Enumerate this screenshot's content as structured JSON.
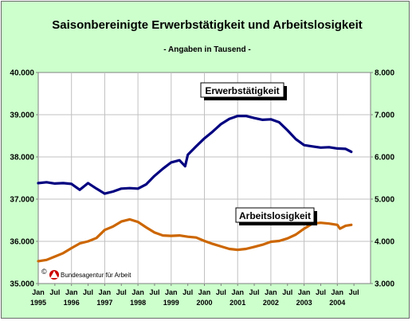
{
  "chart_data": {
    "type": "line",
    "title": "Saisonbereinigte Erwerbstätigkeit und Arbeitslosigkeit",
    "subtitle": "- Angaben in Tausend -",
    "credit": "Bundesagentur für Arbeit",
    "grid": true,
    "background": "#ccffcc",
    "y_left": {
      "range": [
        35000,
        40000
      ],
      "ticks": [
        35000,
        36000,
        37000,
        38000,
        39000,
        40000
      ],
      "tick_labels": [
        "35.000",
        "36.000",
        "37.000",
        "38.000",
        "39.000",
        "40.000"
      ]
    },
    "y_right": {
      "range": [
        3000,
        8000
      ],
      "ticks": [
        3000,
        4000,
        5000,
        6000,
        7000,
        8000
      ],
      "tick_labels": [
        "3.000",
        "4.000",
        "5.000",
        "6.000",
        "7.000",
        "8.000"
      ]
    },
    "x_axis": {
      "start": 1995.0,
      "end": 2005.0,
      "month_labels": [
        "Jan",
        "Jul",
        "Jan",
        "Jul",
        "Jan",
        "Jul",
        "Jan",
        "Jul",
        "Jan",
        "Jul",
        "Jan",
        "Jul",
        "Jan",
        "Jul",
        "Jan",
        "Jul",
        "Jan",
        "Jul",
        "Jan",
        "Jul"
      ],
      "year_labels": [
        "1995",
        "1996",
        "1997",
        "1998",
        "1999",
        "2000",
        "2001",
        "2002",
        "2003",
        "2004"
      ]
    },
    "series": [
      {
        "name": "Erwerbstätigkeit",
        "axis": "left",
        "color": "#000080",
        "x": [
          1995.0,
          1995.25,
          1995.5,
          1995.75,
          1996.0,
          1996.25,
          1996.5,
          1996.75,
          1997.0,
          1997.25,
          1997.5,
          1997.75,
          1998.0,
          1998.25,
          1998.5,
          1998.75,
          1999.0,
          1999.25,
          1999.42,
          1999.5,
          1999.75,
          2000.0,
          2000.25,
          2000.5,
          2000.75,
          2001.0,
          2001.25,
          2001.5,
          2001.75,
          2002.0,
          2002.25,
          2002.5,
          2002.75,
          2003.0,
          2003.25,
          2003.5,
          2003.75,
          2004.0,
          2004.25,
          2004.42
        ],
        "values": [
          37380,
          37400,
          37370,
          37380,
          37360,
          37220,
          37380,
          37250,
          37130,
          37180,
          37250,
          37260,
          37250,
          37350,
          37550,
          37720,
          37870,
          37920,
          37780,
          38050,
          38250,
          38440,
          38600,
          38780,
          38900,
          38970,
          38970,
          38920,
          38880,
          38890,
          38820,
          38630,
          38420,
          38280,
          38250,
          38220,
          38230,
          38200,
          38190,
          38120
        ]
      },
      {
        "name": "Arbeitslosigkeit",
        "axis": "right",
        "color": "#cc6600",
        "x": [
          1995.0,
          1995.25,
          1995.5,
          1995.75,
          1996.0,
          1996.25,
          1996.5,
          1996.75,
          1997.0,
          1997.25,
          1997.5,
          1997.75,
          1998.0,
          1998.25,
          1998.5,
          1998.75,
          1999.0,
          1999.25,
          1999.5,
          1999.75,
          2000.0,
          2000.25,
          2000.5,
          2000.75,
          2001.0,
          2001.25,
          2001.5,
          2001.75,
          2002.0,
          2002.25,
          2002.5,
          2002.75,
          2003.0,
          2003.25,
          2003.5,
          2003.75,
          2004.0,
          2004.08,
          2004.25,
          2004.42
        ],
        "values": [
          3530,
          3560,
          3640,
          3720,
          3840,
          3950,
          4000,
          4080,
          4270,
          4350,
          4470,
          4520,
          4460,
          4330,
          4210,
          4140,
          4130,
          4140,
          4110,
          4090,
          4010,
          3940,
          3880,
          3820,
          3800,
          3820,
          3870,
          3920,
          3990,
          4010,
          4070,
          4160,
          4300,
          4420,
          4440,
          4420,
          4390,
          4300,
          4370,
          4390
        ]
      }
    ]
  }
}
